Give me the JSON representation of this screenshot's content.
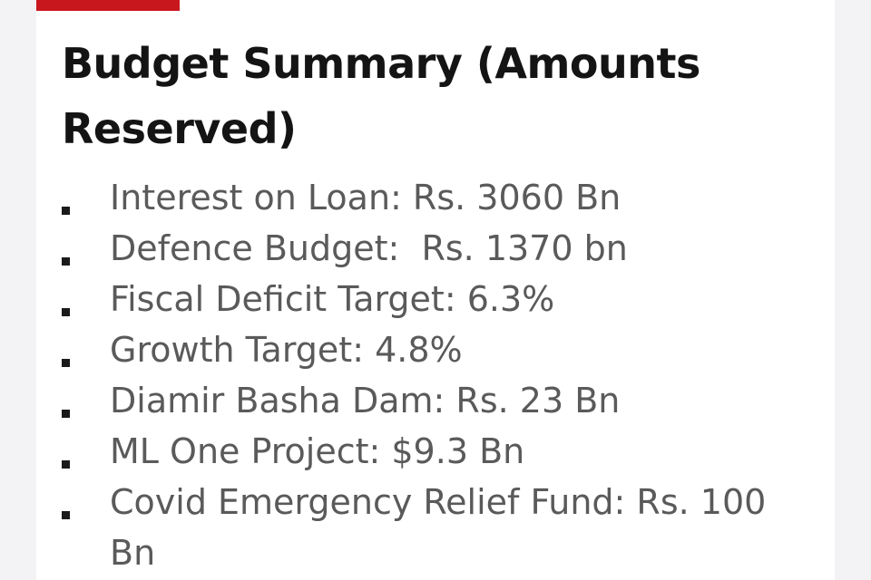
{
  "header": {
    "accent_color": "#c8181e"
  },
  "title": "Budget Summary (Amounts Reserved)",
  "items": [
    {
      "text": "Interest on Loan: Rs. 3060 Bn"
    },
    {
      "text": "Defence Budget:  Rs. 1370 bn"
    },
    {
      "text": "Fiscal Deficit Target: 6.3%"
    },
    {
      "text": "Growth Target: 4.8%"
    },
    {
      "text": "Diamir Basha Dam: Rs. 23 Bn"
    },
    {
      "text": "ML One Project: $9.3 Bn"
    },
    {
      "text": "Covid Emergency Relief Fund: Rs. 100 Bn"
    }
  ],
  "bullet_icon": "square-bullet-icon"
}
